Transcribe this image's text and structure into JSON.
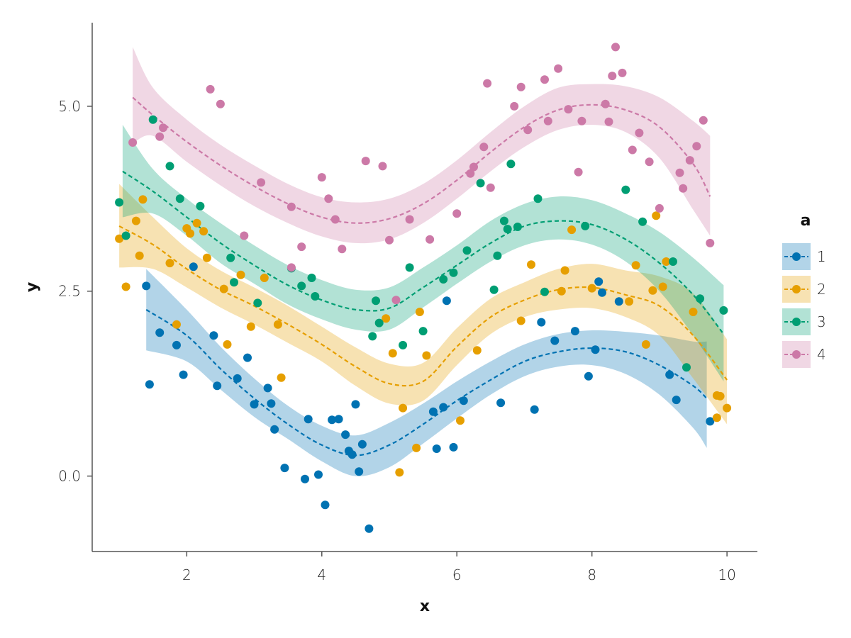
{
  "chart_data": {
    "type": "scatter",
    "title": "",
    "xlabel": "x",
    "ylabel": "y",
    "xlim": [
      0.6,
      10.45
    ],
    "ylim": [
      -1.02,
      6.13
    ],
    "x_ticks": [
      2,
      4,
      6,
      8,
      10
    ],
    "x_tick_labels": [
      "2",
      "4",
      "6",
      "8",
      "10"
    ],
    "y_ticks": [
      0.0,
      2.5,
      5.0
    ],
    "y_tick_labels": [
      "0.0",
      "2.5",
      "5.0"
    ],
    "grid": false,
    "legend": {
      "title": "a",
      "placement": "right",
      "entries": [
        "1",
        "2",
        "3",
        "4"
      ]
    },
    "series": [
      {
        "name": "1",
        "color": "#0072B2",
        "fit_x": [
          1.4,
          2.0,
          2.5,
          3.0,
          3.5,
          4.0,
          4.5,
          5.0,
          5.5,
          6.0,
          6.5,
          7.0,
          7.5,
          8.0,
          8.5,
          9.0,
          9.5,
          9.7
        ],
        "fit_y": [
          2.25,
          1.9,
          1.45,
          1.05,
          0.7,
          0.42,
          0.28,
          0.42,
          0.7,
          1.02,
          1.3,
          1.55,
          1.68,
          1.73,
          1.68,
          1.5,
          1.22,
          1.05
        ],
        "band_lower": [
          1.7,
          1.55,
          1.17,
          0.8,
          0.5,
          0.2,
          0.0,
          0.12,
          0.44,
          0.78,
          1.1,
          1.35,
          1.48,
          1.5,
          1.38,
          1.1,
          0.65,
          0.38
        ],
        "band_upper": [
          2.8,
          2.25,
          1.75,
          1.32,
          0.95,
          0.68,
          0.55,
          0.72,
          0.98,
          1.28,
          1.55,
          1.78,
          1.92,
          1.97,
          1.95,
          1.9,
          1.82,
          1.82
        ],
        "points": [
          [
            1.4,
            2.57
          ],
          [
            1.45,
            1.24
          ],
          [
            1.6,
            1.94
          ],
          [
            1.85,
            1.77
          ],
          [
            1.95,
            1.37
          ],
          [
            2.1,
            2.83
          ],
          [
            2.4,
            1.9
          ],
          [
            2.45,
            1.22
          ],
          [
            2.75,
            1.32
          ],
          [
            2.9,
            1.6
          ],
          [
            3.0,
            0.97
          ],
          [
            3.2,
            1.19
          ],
          [
            3.25,
            0.98
          ],
          [
            3.3,
            0.63
          ],
          [
            3.45,
            0.11
          ],
          [
            3.75,
            -0.04
          ],
          [
            3.8,
            0.77
          ],
          [
            3.95,
            0.02
          ],
          [
            4.05,
            -0.39
          ],
          [
            4.15,
            0.76
          ],
          [
            4.25,
            0.77
          ],
          [
            4.35,
            0.56
          ],
          [
            4.4,
            0.34
          ],
          [
            4.45,
            0.29
          ],
          [
            4.5,
            0.97
          ],
          [
            4.55,
            0.06
          ],
          [
            4.6,
            0.43
          ],
          [
            4.7,
            -0.71
          ],
          [
            5.65,
            0.87
          ],
          [
            5.7,
            0.37
          ],
          [
            5.8,
            0.93
          ],
          [
            5.85,
            2.37
          ],
          [
            5.95,
            0.39
          ],
          [
            6.1,
            1.02
          ],
          [
            6.65,
            0.99
          ],
          [
            7.15,
            0.9
          ],
          [
            7.25,
            2.08
          ],
          [
            7.45,
            1.83
          ],
          [
            7.75,
            1.96
          ],
          [
            7.95,
            1.35
          ],
          [
            8.05,
            1.71
          ],
          [
            8.1,
            2.63
          ],
          [
            8.15,
            2.48
          ],
          [
            8.4,
            2.36
          ],
          [
            9.15,
            1.37
          ],
          [
            9.25,
            1.03
          ],
          [
            9.75,
            0.74
          ]
        ]
      },
      {
        "name": "2",
        "color": "#E69F00",
        "fit_x": [
          1.0,
          1.5,
          2.0,
          2.5,
          3.0,
          3.5,
          4.0,
          4.5,
          5.0,
          5.5,
          6.0,
          6.5,
          7.0,
          7.5,
          8.0,
          8.5,
          9.0,
          9.5,
          10.0
        ],
        "fit_y": [
          3.38,
          3.13,
          2.8,
          2.52,
          2.3,
          2.05,
          1.78,
          1.48,
          1.25,
          1.28,
          1.75,
          2.15,
          2.38,
          2.52,
          2.55,
          2.45,
          2.3,
          1.9,
          1.3
        ],
        "band_lower": [
          2.82,
          2.8,
          2.55,
          2.28,
          2.05,
          1.8,
          1.55,
          1.22,
          0.98,
          1.02,
          1.5,
          1.92,
          2.15,
          2.25,
          2.27,
          2.15,
          1.9,
          1.32,
          0.7
        ],
        "band_upper": [
          3.95,
          3.5,
          3.08,
          2.78,
          2.55,
          2.3,
          2.02,
          1.74,
          1.52,
          1.53,
          2.0,
          2.4,
          2.62,
          2.8,
          2.87,
          2.78,
          2.7,
          2.47,
          1.85
        ],
        "points": [
          [
            1.0,
            3.21
          ],
          [
            1.1,
            2.56
          ],
          [
            1.25,
            3.45
          ],
          [
            1.3,
            2.98
          ],
          [
            1.35,
            3.74
          ],
          [
            1.75,
            2.88
          ],
          [
            1.85,
            2.05
          ],
          [
            2.0,
            3.35
          ],
          [
            2.05,
            3.28
          ],
          [
            2.15,
            3.42
          ],
          [
            2.25,
            3.31
          ],
          [
            2.3,
            2.95
          ],
          [
            2.55,
            2.53
          ],
          [
            2.6,
            1.78
          ],
          [
            2.8,
            2.72
          ],
          [
            2.95,
            2.02
          ],
          [
            3.15,
            2.68
          ],
          [
            3.35,
            2.05
          ],
          [
            3.4,
            1.33
          ],
          [
            4.95,
            2.13
          ],
          [
            5.05,
            1.66
          ],
          [
            5.15,
            0.05
          ],
          [
            5.2,
            0.92
          ],
          [
            5.4,
            0.38
          ],
          [
            5.45,
            2.22
          ],
          [
            5.55,
            1.63
          ],
          [
            6.05,
            0.75
          ],
          [
            6.3,
            1.7
          ],
          [
            6.95,
            2.1
          ],
          [
            7.1,
            2.86
          ],
          [
            7.55,
            2.5
          ],
          [
            7.6,
            2.78
          ],
          [
            7.7,
            3.33
          ],
          [
            8.0,
            2.54
          ],
          [
            8.55,
            2.36
          ],
          [
            8.65,
            2.85
          ],
          [
            8.8,
            1.78
          ],
          [
            8.9,
            2.51
          ],
          [
            8.95,
            3.52
          ],
          [
            9.05,
            2.56
          ],
          [
            9.1,
            2.9
          ],
          [
            9.5,
            2.22
          ],
          [
            9.85,
            1.09
          ],
          [
            9.85,
            0.79
          ],
          [
            9.9,
            1.08
          ],
          [
            10.0,
            0.92
          ]
        ]
      },
      {
        "name": "3",
        "color": "#009E73",
        "fit_x": [
          1.05,
          1.5,
          2.0,
          2.5,
          3.0,
          3.5,
          4.0,
          4.5,
          5.0,
          5.5,
          6.0,
          6.5,
          7.0,
          7.5,
          8.0,
          8.5,
          9.0,
          9.5,
          9.95
        ],
        "fit_y": [
          4.12,
          3.85,
          3.5,
          3.15,
          2.85,
          2.58,
          2.38,
          2.25,
          2.27,
          2.55,
          2.85,
          3.15,
          3.38,
          3.45,
          3.4,
          3.2,
          2.88,
          2.45,
          1.92
        ],
        "band_lower": [
          3.5,
          3.55,
          3.25,
          2.88,
          2.6,
          2.32,
          2.12,
          1.98,
          1.98,
          2.28,
          2.6,
          2.9,
          3.12,
          3.2,
          3.13,
          2.9,
          2.5,
          1.9,
          1.28
        ],
        "band_upper": [
          4.75,
          4.15,
          3.75,
          3.42,
          3.12,
          2.85,
          2.65,
          2.52,
          2.55,
          2.82,
          3.12,
          3.45,
          3.68,
          3.78,
          3.73,
          3.55,
          3.3,
          2.95,
          2.58
        ],
        "points": [
          [
            1.0,
            3.7
          ],
          [
            1.1,
            3.25
          ],
          [
            1.5,
            4.82
          ],
          [
            1.75,
            4.19
          ],
          [
            1.9,
            3.75
          ],
          [
            2.2,
            3.65
          ],
          [
            2.65,
            2.95
          ],
          [
            2.7,
            2.62
          ],
          [
            3.05,
            2.34
          ],
          [
            3.55,
            2.81
          ],
          [
            3.7,
            2.57
          ],
          [
            3.85,
            2.68
          ],
          [
            3.9,
            2.43
          ],
          [
            4.75,
            1.89
          ],
          [
            4.8,
            2.37
          ],
          [
            4.85,
            2.07
          ],
          [
            5.2,
            1.77
          ],
          [
            5.3,
            2.82
          ],
          [
            5.5,
            1.96
          ],
          [
            5.8,
            2.66
          ],
          [
            5.95,
            2.75
          ],
          [
            6.15,
            3.05
          ],
          [
            6.35,
            3.96
          ],
          [
            6.55,
            2.52
          ],
          [
            6.6,
            2.98
          ],
          [
            6.7,
            3.45
          ],
          [
            6.75,
            3.34
          ],
          [
            6.8,
            4.22
          ],
          [
            6.9,
            3.37
          ],
          [
            7.2,
            3.75
          ],
          [
            7.3,
            2.49
          ],
          [
            7.9,
            3.38
          ],
          [
            8.5,
            3.87
          ],
          [
            8.75,
            3.44
          ],
          [
            9.2,
            2.9
          ],
          [
            9.4,
            1.47
          ],
          [
            9.6,
            2.4
          ],
          [
            9.95,
            2.24
          ]
        ]
      },
      {
        "name": "4",
        "color": "#CC79A7",
        "fit_x": [
          1.2,
          1.5,
          2.0,
          2.5,
          3.0,
          3.5,
          4.0,
          4.5,
          5.0,
          5.5,
          6.0,
          6.5,
          7.0,
          7.5,
          8.0,
          8.5,
          9.0,
          9.5,
          9.75
        ],
        "fit_y": [
          5.12,
          4.88,
          4.52,
          4.2,
          3.92,
          3.68,
          3.5,
          3.42,
          3.48,
          3.68,
          4.0,
          4.38,
          4.72,
          4.95,
          5.02,
          4.95,
          4.72,
          4.22,
          3.78
        ],
        "band_lower": [
          4.5,
          4.6,
          4.25,
          3.93,
          3.65,
          3.42,
          3.24,
          3.15,
          3.2,
          3.42,
          3.75,
          4.12,
          4.45,
          4.68,
          4.75,
          4.65,
          4.3,
          3.6,
          3.25
        ],
        "band_upper": [
          5.8,
          5.25,
          4.82,
          4.48,
          4.2,
          3.95,
          3.77,
          3.7,
          3.75,
          3.95,
          4.27,
          4.65,
          5.0,
          5.25,
          5.3,
          5.27,
          5.12,
          4.8,
          4.6
        ],
        "points": [
          [
            1.2,
            4.51
          ],
          [
            1.6,
            4.59
          ],
          [
            1.65,
            4.71
          ],
          [
            2.35,
            5.23
          ],
          [
            2.5,
            5.03
          ],
          [
            2.85,
            3.25
          ],
          [
            3.1,
            3.97
          ],
          [
            3.55,
            3.64
          ],
          [
            3.7,
            3.1
          ],
          [
            3.55,
            2.82
          ],
          [
            4.0,
            4.04
          ],
          [
            4.1,
            3.75
          ],
          [
            4.2,
            3.47
          ],
          [
            4.3,
            3.07
          ],
          [
            4.65,
            4.26
          ],
          [
            4.9,
            4.19
          ],
          [
            5.0,
            3.19
          ],
          [
            5.1,
            2.38
          ],
          [
            5.3,
            3.47
          ],
          [
            5.6,
            3.2
          ],
          [
            6.0,
            3.55
          ],
          [
            6.2,
            4.09
          ],
          [
            6.25,
            4.18
          ],
          [
            6.4,
            4.45
          ],
          [
            6.45,
            5.31
          ],
          [
            6.5,
            3.9
          ],
          [
            6.85,
            5.0
          ],
          [
            6.95,
            5.26
          ],
          [
            7.05,
            4.68
          ],
          [
            7.3,
            5.36
          ],
          [
            7.35,
            4.8
          ],
          [
            7.5,
            5.51
          ],
          [
            7.65,
            4.96
          ],
          [
            7.8,
            4.11
          ],
          [
            7.85,
            4.8
          ],
          [
            8.2,
            5.03
          ],
          [
            8.25,
            4.79
          ],
          [
            8.3,
            5.41
          ],
          [
            8.35,
            5.8
          ],
          [
            8.45,
            5.45
          ],
          [
            8.6,
            4.41
          ],
          [
            8.7,
            4.64
          ],
          [
            8.85,
            4.25
          ],
          [
            9.0,
            3.62
          ],
          [
            9.3,
            4.1
          ],
          [
            9.35,
            3.89
          ],
          [
            9.45,
            4.27
          ],
          [
            9.55,
            4.46
          ],
          [
            9.65,
            4.81
          ],
          [
            9.75,
            3.15
          ]
        ]
      }
    ]
  }
}
